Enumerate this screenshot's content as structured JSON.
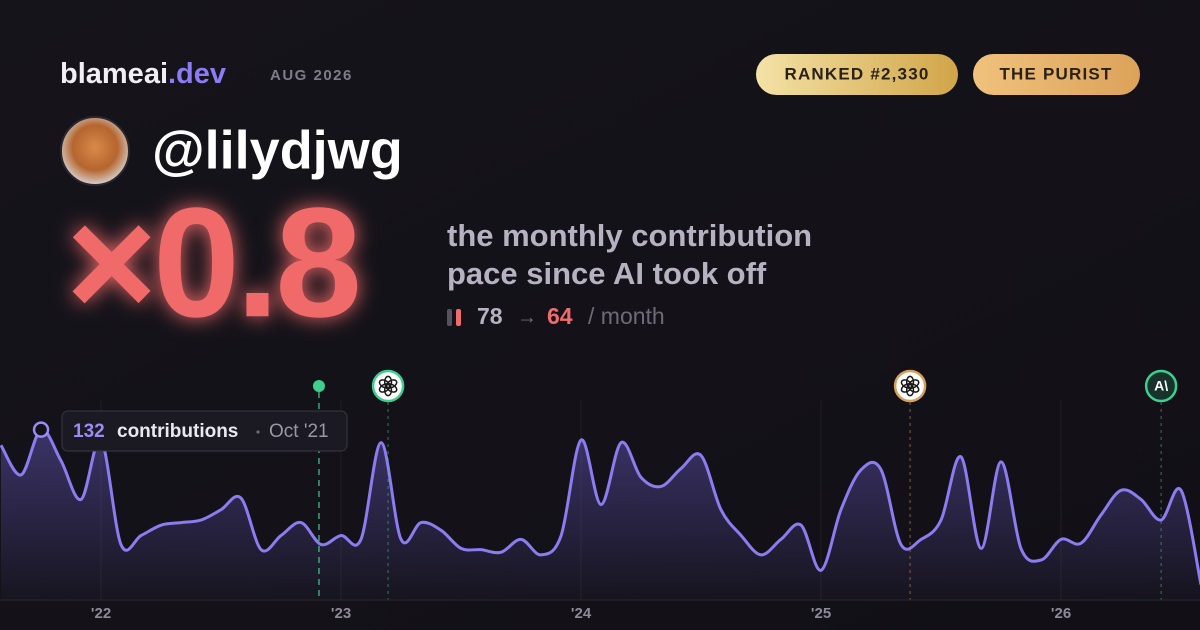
{
  "header": {
    "brand": "blameai",
    "brand_tld": ".dev",
    "date": "AUG 2026",
    "badges": [
      "RANKED #2,330",
      "THE PURIST"
    ]
  },
  "user": {
    "handle": "@lilydjwg"
  },
  "headline": {
    "multiplier": "×0.8",
    "description": [
      "the monthly contribution",
      "pace since AI took off"
    ]
  },
  "pace": {
    "before": 78,
    "arrow": "→",
    "after": 64,
    "unit": "/ month"
  },
  "tooltip": {
    "label": "contributions",
    "date": "Oct '21"
  },
  "chart_data": {
    "type": "area",
    "color": "#8b7cf0",
    "x": [
      2021.583,
      2021.667,
      2021.75,
      2021.833,
      2021.917,
      2022.0,
      2022.083,
      2022.167,
      2022.25,
      2022.333,
      2022.417,
      2022.5,
      2022.583,
      2022.667,
      2022.75,
      2022.833,
      2022.917,
      2023.0,
      2023.083,
      2023.167,
      2023.25,
      2023.333,
      2023.417,
      2023.5,
      2023.583,
      2023.667,
      2023.75,
      2023.833,
      2023.917,
      2024.0,
      2024.083,
      2024.167,
      2024.25,
      2024.333,
      2024.417,
      2024.5,
      2024.583,
      2024.667,
      2024.75,
      2024.833,
      2024.917,
      2025.0,
      2025.083,
      2025.167,
      2025.25,
      2025.333,
      2025.417,
      2025.5,
      2025.583,
      2025.667,
      2025.75,
      2025.833,
      2025.917,
      2026.0,
      2026.083,
      2026.167,
      2026.25,
      2026.333,
      2026.417,
      2026.5,
      2026.583
    ],
    "values": [
      120,
      97,
      132,
      108,
      78,
      124,
      43,
      50,
      58,
      60,
      62,
      70,
      79,
      39,
      50,
      60,
      43,
      50,
      47,
      122,
      47,
      60,
      54,
      40,
      39,
      37,
      47,
      35,
      50,
      124,
      74,
      122,
      95,
      88,
      102,
      112,
      70,
      50,
      35,
      47,
      58,
      23,
      70,
      101,
      101,
      43,
      47,
      62,
      111,
      40,
      107,
      40,
      31,
      47,
      44,
      66,
      85,
      78,
      62,
      85,
      12
    ],
    "xlim": [
      2021.579,
      2026.579
    ],
    "ylim": [
      0,
      155
    ],
    "xticks": [
      {
        "value": 2022,
        "label": "'22"
      },
      {
        "value": 2023,
        "label": "'23"
      },
      {
        "value": 2024,
        "label": "'24"
      },
      {
        "value": 2025,
        "label": "'25"
      },
      {
        "value": 2026,
        "label": "'26"
      }
    ],
    "grid": true,
    "events": [
      {
        "x": 2022.908,
        "color": "#3ecf8e",
        "icon": "dot"
      },
      {
        "x": 2023.196,
        "color": "#3ecf8e",
        "icon": "openai"
      },
      {
        "x": 2025.371,
        "color": "#d9a05b",
        "icon": "openai"
      },
      {
        "x": 2026.417,
        "color": "#3ecf8e",
        "icon": "anthropic",
        "label": "A\\"
      }
    ]
  }
}
